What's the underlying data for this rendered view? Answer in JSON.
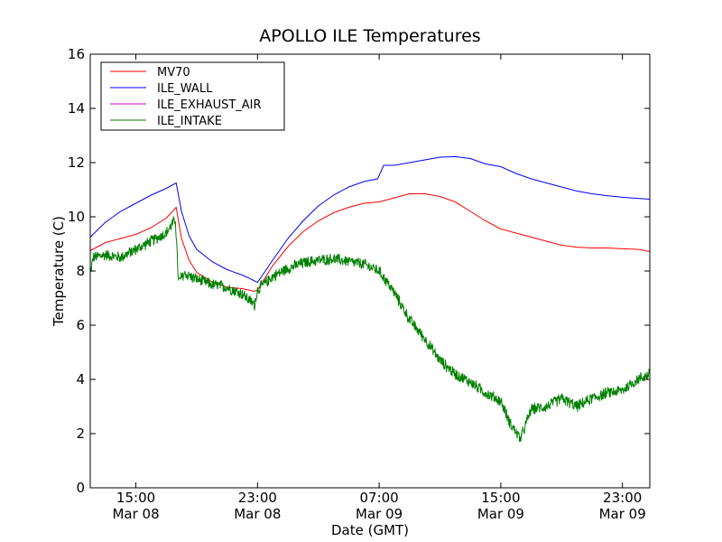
{
  "chart_data": {
    "type": "line",
    "title": "APOLLO ILE Temperatures",
    "xlabel": "Date (GMT)",
    "ylabel": "Temperature (C)",
    "x_unit": "hours since 2013-03-08 12:00 GMT",
    "xlim": [
      0,
      36.8
    ],
    "ylim": [
      0,
      16
    ],
    "grid": false,
    "legend_position": "top-left",
    "y_ticks": [
      0,
      2,
      4,
      6,
      8,
      10,
      12,
      14,
      16
    ],
    "x_ticks": [
      {
        "x": 3,
        "time": "15:00",
        "date": "Mar 08"
      },
      {
        "x": 11,
        "time": "23:00",
        "date": "Mar 08"
      },
      {
        "x": 19,
        "time": "07:00",
        "date": "Mar 09"
      },
      {
        "x": 27,
        "time": "15:00",
        "date": "Mar 09"
      },
      {
        "x": 35,
        "time": "23:00",
        "date": "Mar 09"
      }
    ],
    "series": [
      {
        "name": "MV70",
        "color": "#ff0000",
        "noise": 0,
        "points": [
          [
            0,
            8.75
          ],
          [
            1,
            9.05
          ],
          [
            2,
            9.2
          ],
          [
            3,
            9.35
          ],
          [
            4,
            9.6
          ],
          [
            5,
            9.95
          ],
          [
            5.65,
            10.35
          ],
          [
            6,
            9.2
          ],
          [
            6.5,
            8.4
          ],
          [
            7,
            7.95
          ],
          [
            8,
            7.6
          ],
          [
            9,
            7.4
          ],
          [
            10,
            7.35
          ],
          [
            10.8,
            7.25
          ],
          [
            11,
            7.3
          ],
          [
            12,
            8.2
          ],
          [
            13,
            8.9
          ],
          [
            14,
            9.45
          ],
          [
            15,
            9.85
          ],
          [
            16,
            10.15
          ],
          [
            17,
            10.35
          ],
          [
            18,
            10.5
          ],
          [
            19,
            10.55
          ],
          [
            20,
            10.7
          ],
          [
            21,
            10.85
          ],
          [
            22,
            10.85
          ],
          [
            23,
            10.75
          ],
          [
            24,
            10.55
          ],
          [
            25,
            10.2
          ],
          [
            26,
            9.85
          ],
          [
            27,
            9.55
          ],
          [
            28,
            9.4
          ],
          [
            29,
            9.25
          ],
          [
            30,
            9.1
          ],
          [
            31,
            8.95
          ],
          [
            32,
            8.88
          ],
          [
            33,
            8.85
          ],
          [
            34,
            8.85
          ],
          [
            35,
            8.82
          ],
          [
            36,
            8.8
          ],
          [
            36.8,
            8.72
          ]
        ]
      },
      {
        "name": "ILE_WALL",
        "color": "#0000ff",
        "noise": 0,
        "points": [
          [
            0,
            9.25
          ],
          [
            1,
            9.8
          ],
          [
            2,
            10.2
          ],
          [
            3,
            10.5
          ],
          [
            4,
            10.8
          ],
          [
            5,
            11.05
          ],
          [
            5.65,
            11.25
          ],
          [
            6,
            10.2
          ],
          [
            6.5,
            9.3
          ],
          [
            7,
            8.8
          ],
          [
            8,
            8.35
          ],
          [
            9,
            8.05
          ],
          [
            10,
            7.85
          ],
          [
            10.5,
            7.72
          ],
          [
            11,
            7.58
          ],
          [
            12,
            8.4
          ],
          [
            13,
            9.2
          ],
          [
            14,
            9.85
          ],
          [
            15,
            10.4
          ],
          [
            16,
            10.8
          ],
          [
            17,
            11.1
          ],
          [
            18,
            11.3
          ],
          [
            18.9,
            11.4
          ],
          [
            19.3,
            11.9
          ],
          [
            20,
            11.9
          ],
          [
            21,
            12.0
          ],
          [
            22,
            12.1
          ],
          [
            23,
            12.2
          ],
          [
            24,
            12.22
          ],
          [
            25,
            12.15
          ],
          [
            26,
            11.95
          ],
          [
            27,
            11.85
          ],
          [
            28,
            11.6
          ],
          [
            29,
            11.4
          ],
          [
            30,
            11.25
          ],
          [
            31,
            11.1
          ],
          [
            32,
            10.95
          ],
          [
            33,
            10.85
          ],
          [
            34,
            10.78
          ],
          [
            35,
            10.72
          ],
          [
            36,
            10.68
          ],
          [
            36.8,
            10.65
          ]
        ]
      },
      {
        "name": "ILE_EXHAUST_AIR",
        "color": "#bf00bf",
        "noise": 0,
        "points": []
      },
      {
        "name": "ILE_INTAKE",
        "color": "#008000",
        "noise": 0.15,
        "points": [
          [
            0,
            7.9
          ],
          [
            0.2,
            8.5
          ],
          [
            1,
            8.6
          ],
          [
            2,
            8.5
          ],
          [
            3,
            8.8
          ],
          [
            4,
            9.1
          ],
          [
            5,
            9.4
          ],
          [
            5.6,
            9.9
          ],
          [
            5.8,
            7.6
          ],
          [
            6.2,
            7.9
          ],
          [
            7,
            7.7
          ],
          [
            8,
            7.5
          ],
          [
            9,
            7.4
          ],
          [
            10,
            7.15
          ],
          [
            10.8,
            6.75
          ],
          [
            11,
            7.3
          ],
          [
            12,
            7.8
          ],
          [
            13,
            8.1
          ],
          [
            14,
            8.3
          ],
          [
            15,
            8.4
          ],
          [
            16,
            8.45
          ],
          [
            17,
            8.35
          ],
          [
            18,
            8.25
          ],
          [
            19,
            8.0
          ],
          [
            20,
            7.2
          ],
          [
            21,
            6.2
          ],
          [
            22,
            5.5
          ],
          [
            23,
            4.7
          ],
          [
            24,
            4.2
          ],
          [
            25,
            3.9
          ],
          [
            26,
            3.5
          ],
          [
            27,
            3.2
          ],
          [
            27.6,
            2.4
          ],
          [
            28.3,
            1.8
          ],
          [
            29,
            2.9
          ],
          [
            30,
            3.0
          ],
          [
            31,
            3.3
          ],
          [
            32,
            3.0
          ],
          [
            33,
            3.3
          ],
          [
            34,
            3.5
          ],
          [
            35,
            3.6
          ],
          [
            36,
            4.0
          ],
          [
            36.8,
            4.2
          ]
        ]
      }
    ]
  }
}
